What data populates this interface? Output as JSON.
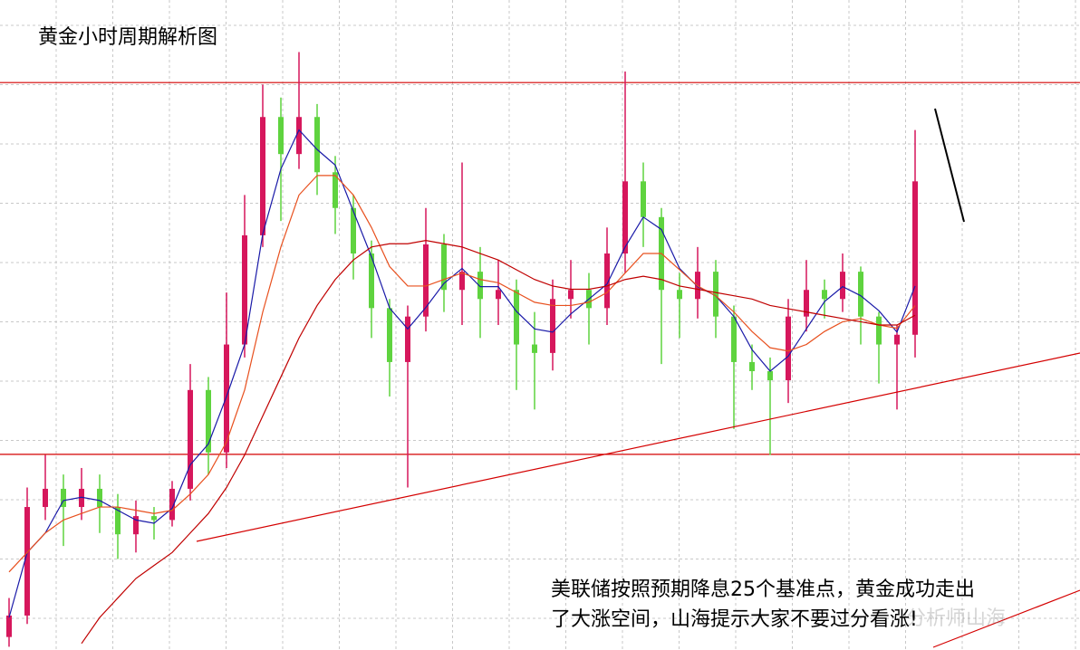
{
  "chart_data": {
    "type": "candlestick",
    "title": "黄金小时周期解析图",
    "annotation": [
      "美联储按照预期降息25个基准点，黄金成功走出",
      "了大涨空间，山海提示大家不要过分看涨!"
    ],
    "watermark": "分析师山海",
    "ylim": [
      0,
      100
    ],
    "grid": true,
    "up_color": "#d6175c",
    "down_color": "#5fd33f",
    "hlines": [
      87.3,
      30.1
    ],
    "hline_color": "#d40000",
    "open": [
      2,
      5.3,
      22,
      24.8,
      22,
      24.8,
      22,
      17.8,
      20.6,
      20,
      24.8,
      40,
      30.4,
      47,
      63.8,
      82,
      76.3,
      82,
      73.5,
      68,
      61,
      52.6,
      44.3,
      51.3,
      62.4,
      55.4,
      58.2,
      54,
      55.4,
      47,
      45.7,
      54,
      55.4,
      52.6,
      61,
      72.1,
      66.6,
      55.4,
      54,
      58.2,
      51.3,
      44.3,
      42.9,
      41.5,
      51.3,
      55.4,
      54,
      58.2,
      51.3,
      47,
      48.5
    ],
    "high": [
      8,
      25,
      30,
      27,
      28,
      27,
      24,
      23,
      22,
      26,
      44,
      42,
      55,
      70,
      87,
      85,
      92,
      84,
      76,
      70,
      63,
      54,
      53,
      68,
      64,
      75,
      62,
      60,
      57,
      52,
      57,
      60,
      58,
      65,
      89,
      75,
      68,
      58,
      62,
      60,
      53,
      47,
      45,
      54,
      60,
      57,
      61,
      59,
      52,
      50,
      80
    ],
    "low": [
      0.5,
      4,
      20,
      16,
      20,
      18,
      14,
      15,
      17,
      19,
      23,
      27,
      28,
      45,
      62,
      66,
      74,
      70,
      64,
      57,
      48,
      39,
      25,
      49,
      52,
      50,
      48,
      50,
      40,
      37,
      43,
      51,
      47,
      50,
      58,
      62,
      44,
      48,
      51,
      48,
      34,
      40,
      30,
      38,
      49,
      51,
      52,
      47,
      41,
      37,
      45
    ],
    "close": [
      5.3,
      22,
      24.8,
      22,
      24.8,
      22,
      17.8,
      20.6,
      20,
      24.8,
      40,
      30.4,
      47,
      63.8,
      82,
      76.3,
      82,
      73.5,
      68,
      61,
      52.6,
      44.3,
      51.3,
      62.4,
      55.4,
      58.2,
      54,
      55.4,
      47,
      45.7,
      54,
      55.4,
      52.6,
      61,
      72.1,
      66.6,
      55.4,
      54,
      58.2,
      51.3,
      44.3,
      42.9,
      41.5,
      51.3,
      55.4,
      54,
      58.2,
      51.3,
      47,
      48.5,
      72.1
    ],
    "lines": [
      {
        "color": "#1a1aa8",
        "values": [
          5,
          15,
          18,
          23,
          23.5,
          23,
          21.5,
          20,
          19.5,
          21.8,
          28.5,
          31.7,
          39,
          47,
          64,
          74,
          80,
          77,
          74.6,
          67.5,
          60.5,
          52.6,
          49.4,
          52.7,
          56.4,
          58.7,
          55.9,
          55.9,
          52.1,
          49.4,
          48.9,
          51.7,
          54,
          56.3,
          62,
          66.6,
          64.7,
          58.7,
          55.9,
          54.5,
          51.3,
          46.2,
          42.9,
          45.2,
          49.4,
          53.6,
          55.9,
          54.5,
          52.2,
          48.9,
          56
        ]
      },
      {
        "color": "#e8501e",
        "values": [
          12,
          15,
          18,
          20,
          21,
          22,
          22,
          21.5,
          21,
          21.5,
          24,
          27,
          32,
          40,
          52,
          62,
          70,
          73,
          73,
          70,
          65,
          59,
          56,
          56,
          57,
          58,
          57,
          56.5,
          55,
          53.5,
          53,
          53,
          53.5,
          55,
          58,
          61,
          61,
          58.5,
          56,
          54.5,
          52,
          49,
          46.5,
          46,
          47,
          49,
          50.5,
          51,
          50,
          49.5,
          53
        ]
      },
      {
        "color": "#c00000",
        "values": [
          null,
          null,
          null,
          null,
          1,
          5,
          8,
          11,
          13,
          15,
          18,
          21,
          25,
          30,
          36,
          42,
          48,
          53,
          57,
          60,
          62,
          62.5,
          62.5,
          63,
          62.5,
          62,
          61,
          60,
          58.5,
          57,
          56,
          55.5,
          55.5,
          56,
          57,
          57.5,
          57,
          56,
          55.5,
          55,
          54.5,
          54,
          53,
          52.5,
          52,
          51.5,
          51,
          50.5,
          50,
          50,
          51.5
        ]
      }
    ]
  }
}
